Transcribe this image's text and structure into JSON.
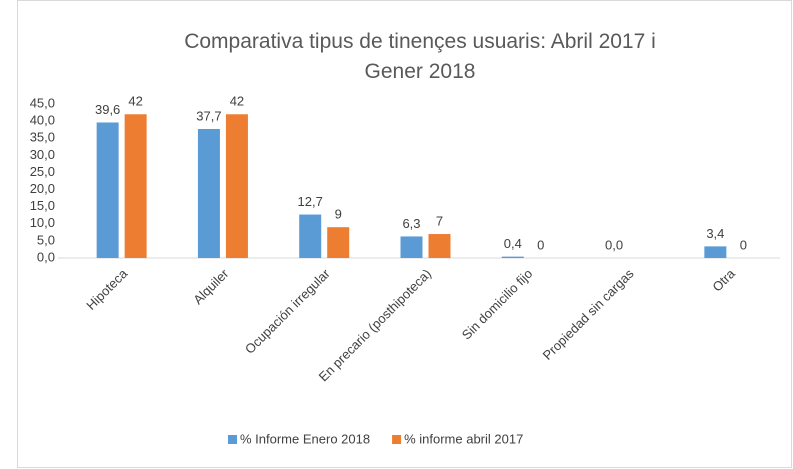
{
  "chart_data": {
    "type": "bar",
    "title": "Comparativa tipus de tinençes usuaris: Abril 2017 i Gener 2018",
    "categories": [
      "Hipoteca",
      "Alquiler",
      "Ocupación irregular",
      "En precario (posthipoteca)",
      "Sin domicilio fijo",
      "Propiedad sin cargas",
      "Otra"
    ],
    "series": [
      {
        "name": "% Informe Enero 2018",
        "color": "#5b9bd5",
        "values": [
          39.6,
          37.7,
          12.7,
          6.3,
          0.4,
          0.0,
          3.4
        ],
        "value_labels": [
          "39,6",
          "37,7",
          "12,7",
          "6,3",
          "0,4",
          "0,0",
          "3,4"
        ]
      },
      {
        "name": "% informe abril 2017",
        "color": "#ed7d31",
        "values": [
          42,
          42,
          9,
          7,
          0,
          null,
          0
        ]
      }
    ],
    "ylim": [
      0,
      45
    ],
    "yticks": [
      {
        "value": 0,
        "label": "0,0"
      },
      {
        "value": 5,
        "label": "5,0"
      },
      {
        "value": 10,
        "label": "10,0"
      },
      {
        "value": 15,
        "label": "15,0"
      },
      {
        "value": 20,
        "label": "20,0"
      },
      {
        "value": 25,
        "label": "25,0"
      },
      {
        "value": 30,
        "label": "30,0"
      },
      {
        "value": 35,
        "label": "35,0"
      },
      {
        "value": 40,
        "label": "40,0"
      },
      {
        "value": 45,
        "label": "45,0"
      }
    ],
    "grid": false,
    "legend": "bottom"
  }
}
